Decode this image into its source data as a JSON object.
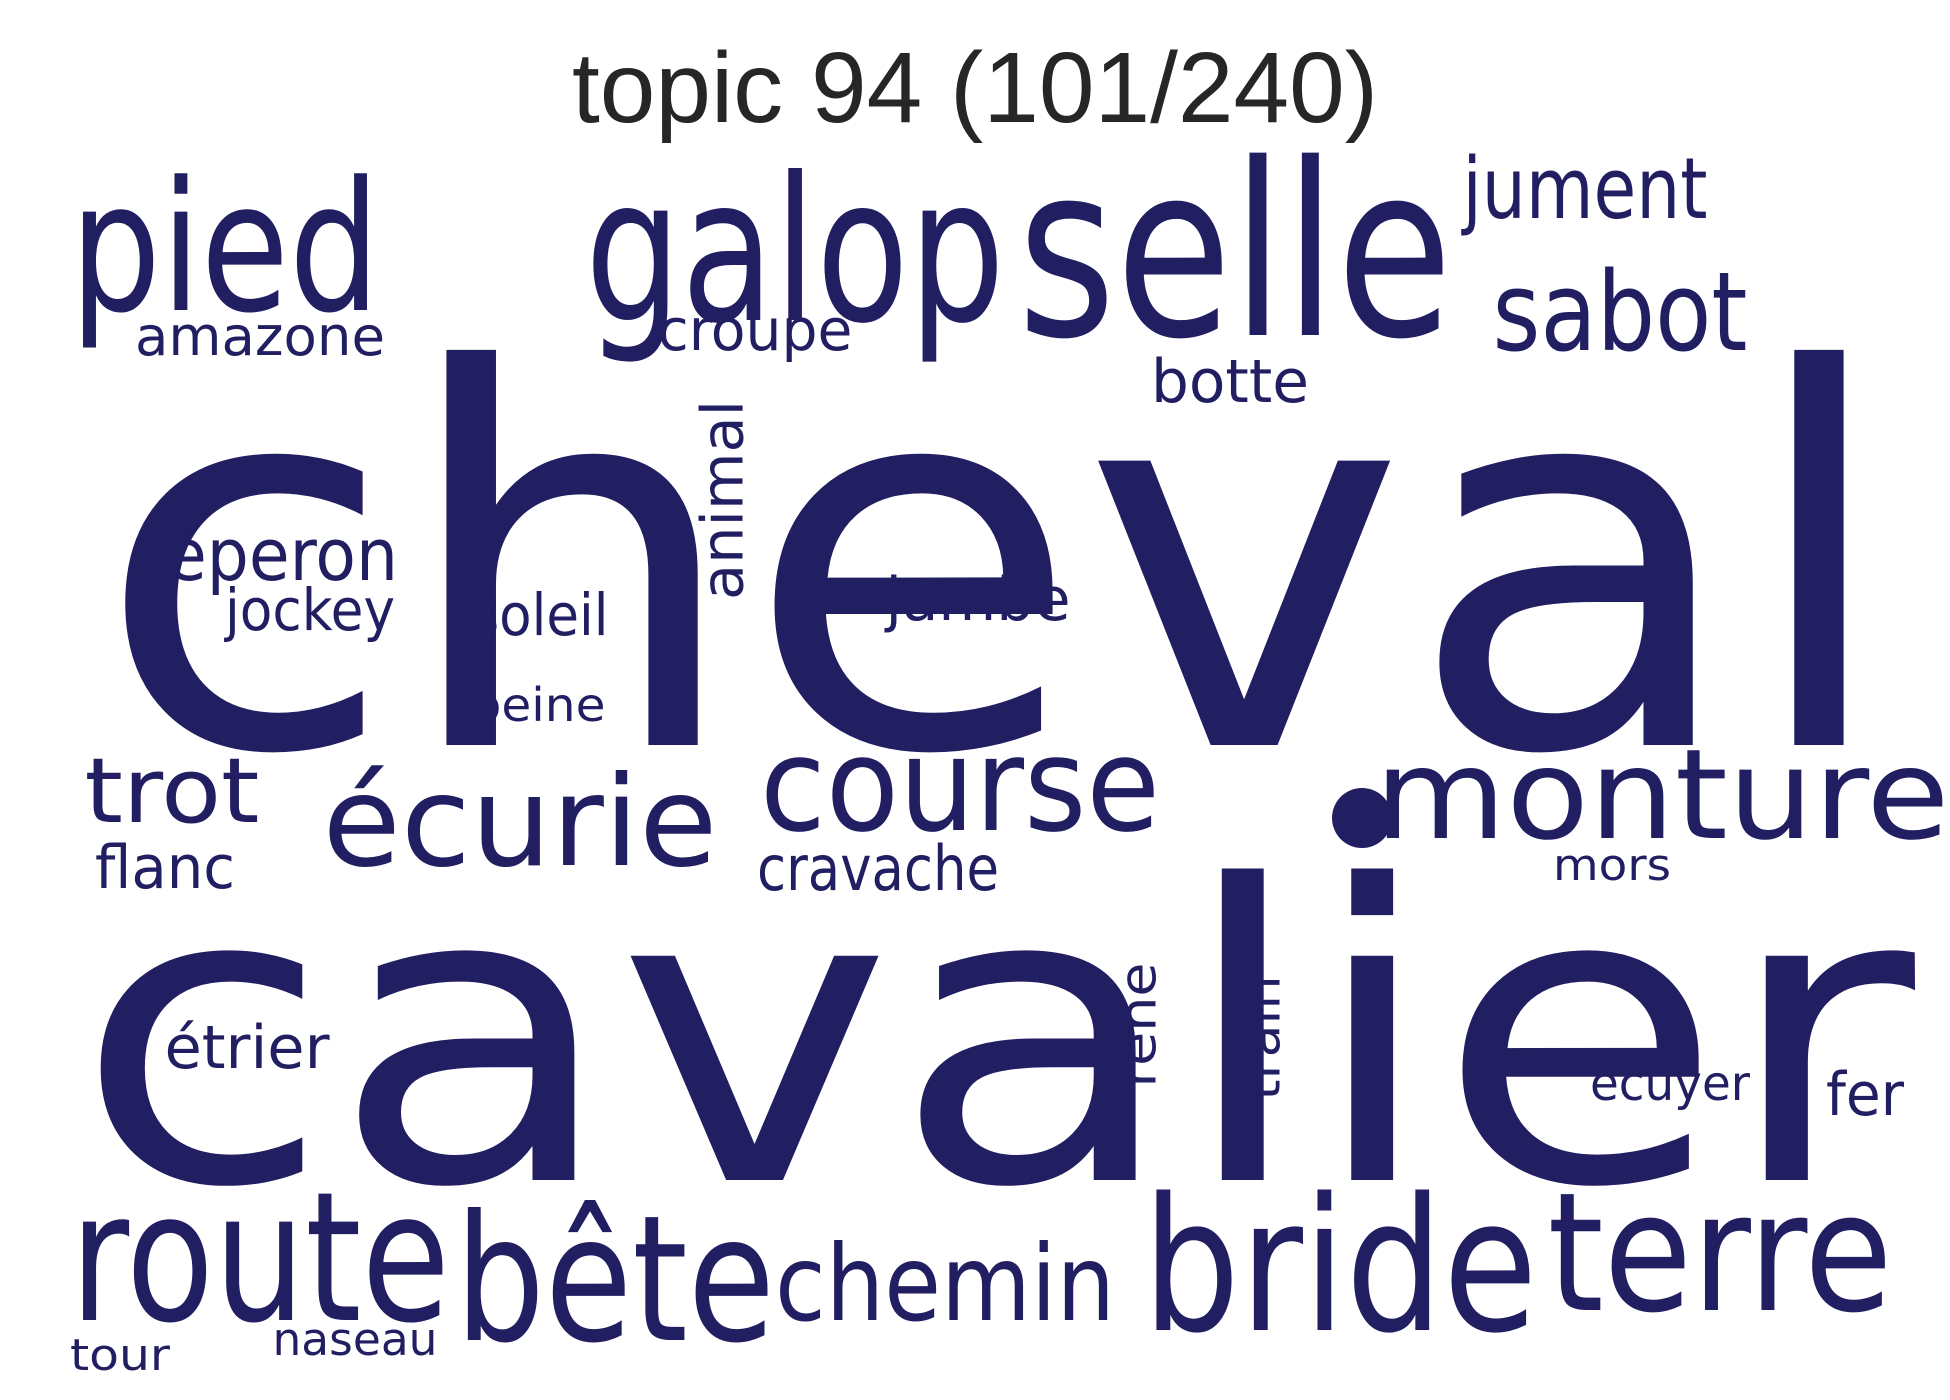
{
  "title": "topic 94 (101/240)",
  "word_color": "#221e62",
  "words": [
    "cheval",
    "cavalier",
    "selle",
    "galop",
    "pied",
    "bride",
    "terre",
    "route",
    "bête",
    "monture",
    "course",
    "écurie",
    "sabot",
    "chemin",
    "jument",
    "trot",
    "éperon",
    "animal",
    "cravache",
    "botte",
    "croupe",
    "jambe",
    "amazone",
    "jockey",
    "soleil",
    "étrier",
    "flanc",
    "rêne",
    "train",
    "peine",
    "écuyer",
    "fer",
    "mors",
    "naseau",
    "tour"
  ]
}
